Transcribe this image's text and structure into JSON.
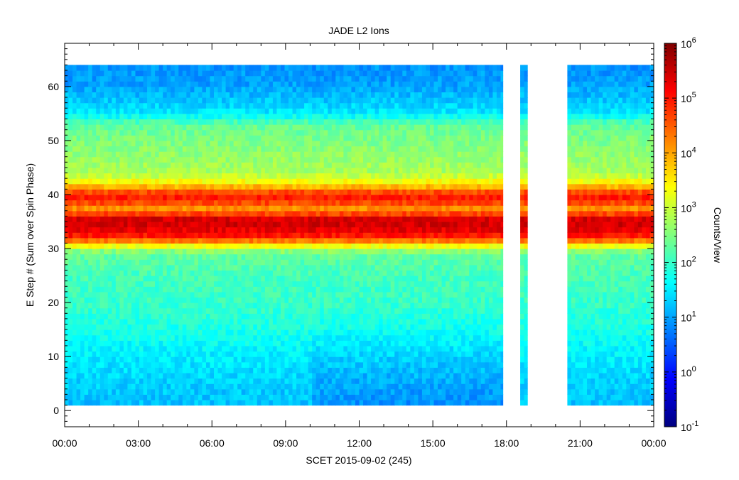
{
  "chart_data": {
    "type": "heatmap",
    "title": "JADE L2 Ions",
    "xlabel": "SCET 2015-09-02 (245)",
    "ylabel": "E Step # (Sum over Spin Phase)",
    "colorbar_label": "Counts/View",
    "x_range_hours": [
      0,
      24
    ],
    "x_ticks": [
      "00:00",
      "03:00",
      "06:00",
      "09:00",
      "12:00",
      "15:00",
      "18:00",
      "21:00",
      "00:00"
    ],
    "y_range": [
      -3,
      68
    ],
    "y_ticks": [
      0,
      10,
      20,
      30,
      40,
      50,
      60
    ],
    "data_y_range": [
      1,
      64
    ],
    "colorbar_log_range": [
      -1,
      6
    ],
    "colorbar_ticks": [
      {
        "base": "10",
        "exp": "6",
        "log": 6
      },
      {
        "base": "10",
        "exp": "5",
        "log": 5
      },
      {
        "base": "10",
        "exp": "4",
        "log": 4
      },
      {
        "base": "10",
        "exp": "3",
        "log": 3
      },
      {
        "base": "10",
        "exp": "2",
        "log": 2
      },
      {
        "base": "10",
        "exp": "1",
        "log": 1
      },
      {
        "base": "10",
        "exp": "0",
        "log": 0
      },
      {
        "base": "10",
        "exp": "-1",
        "log": -1
      }
    ],
    "colormap": [
      "#00007f",
      "#0000ff",
      "#007fff",
      "#00ffff",
      "#7fff7f",
      "#ffff00",
      "#ff7f00",
      "#ff0000",
      "#7f0000"
    ],
    "data_intervals_hours": [
      [
        0,
        17.85
      ],
      [
        18.55,
        18.85
      ],
      [
        20.45,
        24
      ]
    ],
    "log_counts_profile_by_estep": [
      {
        "estep": 1,
        "log": 1.2
      },
      {
        "estep": 5,
        "log": 1.3
      },
      {
        "estep": 10,
        "log": 1.5
      },
      {
        "estep": 15,
        "log": 1.8
      },
      {
        "estep": 20,
        "log": 2.0
      },
      {
        "estep": 25,
        "log": 2.1
      },
      {
        "estep": 29,
        "log": 2.3
      },
      {
        "estep": 30,
        "log": 2.8
      },
      {
        "estep": 31,
        "log": 3.8
      },
      {
        "estep": 32,
        "log": 4.8
      },
      {
        "estep": 33,
        "log": 5.2
      },
      {
        "estep": 35,
        "log": 5.5
      },
      {
        "estep": 36,
        "log": 5.3
      },
      {
        "estep": 37,
        "log": 4.0
      },
      {
        "estep": 38,
        "log": 4.3
      },
      {
        "estep": 39,
        "log": 5.0
      },
      {
        "estep": 40,
        "log": 4.9
      },
      {
        "estep": 41,
        "log": 4.3
      },
      {
        "estep": 42,
        "log": 3.5
      },
      {
        "estep": 44,
        "log": 2.8
      },
      {
        "estep": 48,
        "log": 2.6
      },
      {
        "estep": 53,
        "log": 2.3
      },
      {
        "estep": 55,
        "log": 1.5
      },
      {
        "estep": 60,
        "log": 1.0
      },
      {
        "estep": 64,
        "log": 0.9
      }
    ]
  }
}
